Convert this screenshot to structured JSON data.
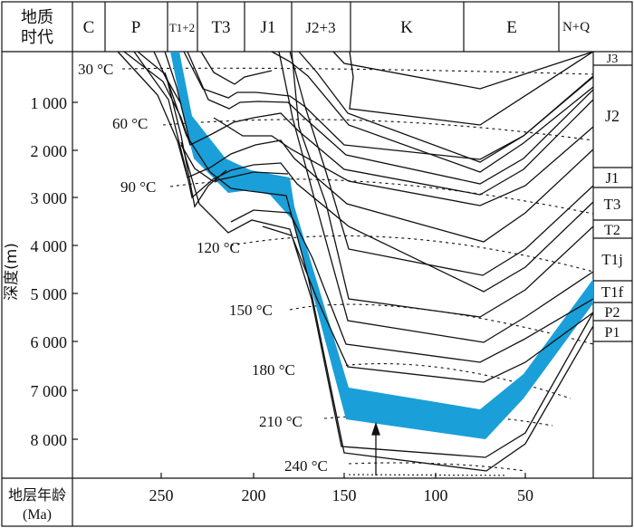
{
  "header": {
    "corner_line1": "地质",
    "corner_line2": "时代",
    "periods": [
      "C",
      "P",
      "T1+2",
      "T3",
      "J1",
      "J2+3",
      "K",
      "E",
      "N+Q"
    ]
  },
  "y_axis": {
    "label": "深度(m)",
    "ticks": [
      "1 000",
      "2 000",
      "3 000",
      "4 000",
      "5 000",
      "6 000",
      "7 000",
      "8 000"
    ]
  },
  "x_axis": {
    "label_line1": "地层年龄",
    "label_line2": "(Ma)",
    "ticks": [
      "250",
      "200",
      "150",
      "100",
      "50"
    ]
  },
  "isotherms": [
    "30 °C",
    "60 °C",
    "90 °C",
    "120 °C",
    "150 °C",
    "180 °C",
    "210 °C",
    "240 °C"
  ],
  "strata": [
    "J3",
    "J2",
    "J1",
    "T3",
    "T2",
    "T1j",
    "T1f",
    "P2",
    "P1"
  ],
  "colors": {
    "layer_fill": "#1a9fd9",
    "line": "#111111"
  }
}
